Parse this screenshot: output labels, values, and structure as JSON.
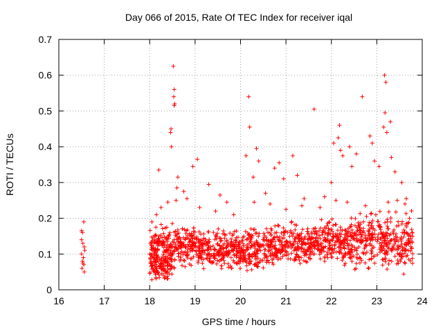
{
  "chart_data": {
    "type": "scatter",
    "title": "Day 066 of 2015, Rate Of TEC Index for receiver iqal",
    "xlabel": "GPS time / hours",
    "ylabel": "ROTI / TECUs",
    "xlim": [
      16,
      24
    ],
    "ylim": [
      0,
      0.7
    ],
    "xticks": [
      "16",
      "17",
      "18",
      "19",
      "20",
      "21",
      "22",
      "23",
      "24"
    ],
    "yticks": [
      "0",
      "0.1",
      "0.2",
      "0.3",
      "0.4",
      "0.5",
      "0.6",
      "0.7"
    ],
    "grid": true,
    "marker": "+",
    "color": "#ff0000",
    "series": [
      {
        "name": "ROTI",
        "points": [
          [
            16.5,
            0.165
          ],
          [
            16.52,
            0.16
          ],
          [
            16.55,
            0.19
          ],
          [
            16.53,
            0.13
          ],
          [
            16.56,
            0.12
          ],
          [
            16.5,
            0.1
          ],
          [
            16.54,
            0.09
          ],
          [
            16.52,
            0.08
          ],
          [
            16.55,
            0.07
          ],
          [
            16.51,
            0.06
          ],
          [
            16.56,
            0.05
          ],
          [
            16.53,
            0.075
          ],
          [
            16.57,
            0.11
          ],
          [
            16.5,
            0.14
          ],
          [
            18.2,
            0.335
          ],
          [
            18.48,
            0.4
          ],
          [
            18.46,
            0.44
          ],
          [
            18.47,
            0.45
          ],
          [
            18.52,
            0.625
          ],
          [
            18.54,
            0.56
          ],
          [
            18.53,
            0.54
          ],
          [
            18.55,
            0.52
          ],
          [
            18.54,
            0.515
          ],
          [
            18.6,
            0.285
          ],
          [
            18.62,
            0.315
          ],
          [
            18.75,
            0.275
          ],
          [
            18.82,
            0.255
          ],
          [
            18.95,
            0.345
          ],
          [
            19.05,
            0.365
          ],
          [
            19.3,
            0.295
          ],
          [
            19.55,
            0.265
          ],
          [
            19.7,
            0.245
          ],
          [
            20.12,
            0.375
          ],
          [
            20.18,
            0.54
          ],
          [
            20.2,
            0.455
          ],
          [
            20.35,
            0.395
          ],
          [
            20.4,
            0.36
          ],
          [
            20.28,
            0.315
          ],
          [
            20.55,
            0.27
          ],
          [
            20.75,
            0.34
          ],
          [
            20.85,
            0.355
          ],
          [
            20.95,
            0.31
          ],
          [
            21.15,
            0.375
          ],
          [
            21.25,
            0.32
          ],
          [
            21.4,
            0.255
          ],
          [
            21.62,
            0.505
          ],
          [
            21.85,
            0.26
          ],
          [
            22.0,
            0.3
          ],
          [
            22.05,
            0.41
          ],
          [
            22.15,
            0.425
          ],
          [
            22.18,
            0.46
          ],
          [
            22.2,
            0.39
          ],
          [
            22.25,
            0.375
          ],
          [
            22.4,
            0.4
          ],
          [
            22.45,
            0.345
          ],
          [
            22.55,
            0.38
          ],
          [
            22.68,
            0.54
          ],
          [
            22.85,
            0.43
          ],
          [
            22.9,
            0.41
          ],
          [
            22.95,
            0.36
          ],
          [
            23.05,
            0.345
          ],
          [
            23.15,
            0.455
          ],
          [
            23.17,
            0.6
          ],
          [
            23.2,
            0.58
          ],
          [
            23.18,
            0.495
          ],
          [
            23.22,
            0.44
          ],
          [
            23.3,
            0.47
          ],
          [
            23.32,
            0.37
          ],
          [
            23.4,
            0.33
          ],
          [
            23.55,
            0.3
          ],
          [
            23.65,
            0.255
          ],
          [
            23.72,
            0.2
          ],
          [
            18.05,
            0.19
          ],
          [
            18.15,
            0.21
          ],
          [
            18.25,
            0.23
          ],
          [
            18.4,
            0.245
          ],
          [
            18.58,
            0.25
          ],
          [
            19.1,
            0.23
          ],
          [
            19.45,
            0.22
          ],
          [
            19.85,
            0.21
          ],
          [
            20.3,
            0.245
          ],
          [
            20.65,
            0.24
          ],
          [
            21.0,
            0.225
          ],
          [
            21.35,
            0.235
          ],
          [
            21.75,
            0.23
          ],
          [
            22.1,
            0.25
          ],
          [
            22.35,
            0.245
          ],
          [
            22.75,
            0.235
          ],
          [
            23.25,
            0.245
          ],
          [
            23.45,
            0.25
          ],
          [
            23.62,
            0.24
          ]
        ]
      }
    ],
    "dense_bands": [
      {
        "x": [
          18.0,
          18.5
        ],
        "y": [
          0.015,
          0.12
        ]
      },
      {
        "x": [
          18.0,
          19.0
        ],
        "y": [
          0.05,
          0.2
        ]
      },
      {
        "x": [
          19.0,
          20.1
        ],
        "y": [
          0.04,
          0.18
        ]
      },
      {
        "x": [
          20.1,
          20.6
        ],
        "y": [
          0.02,
          0.2
        ]
      },
      {
        "x": [
          20.6,
          21.6
        ],
        "y": [
          0.05,
          0.2
        ]
      },
      {
        "x": [
          21.6,
          22.4
        ],
        "y": [
          0.05,
          0.22
        ]
      },
      {
        "x": [
          22.4,
          23.8
        ],
        "y": [
          0.03,
          0.24
        ]
      }
    ]
  }
}
